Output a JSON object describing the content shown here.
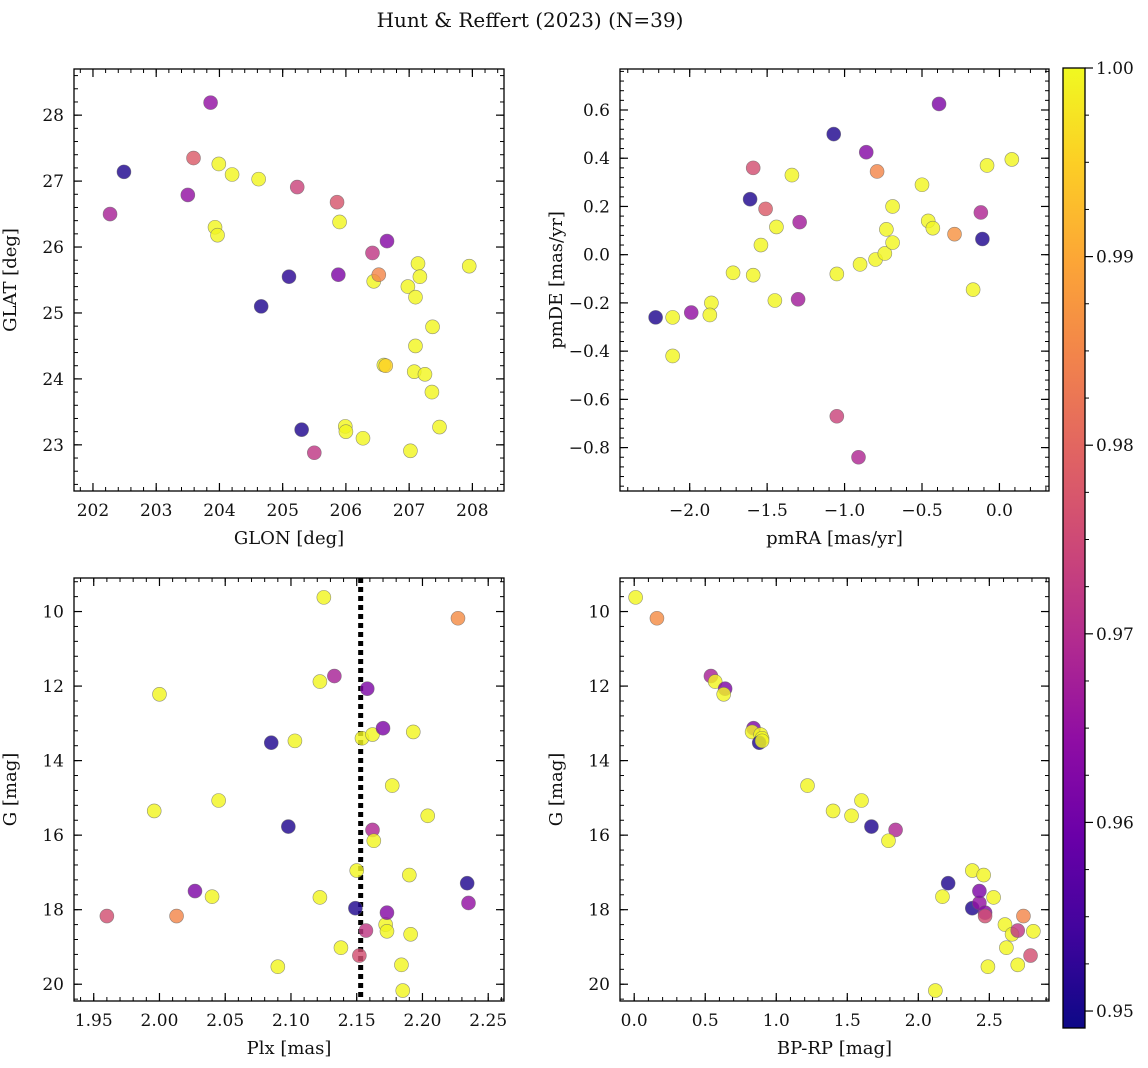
{
  "title": "Hunt & Reffert (2023) (N=39)",
  "chart_data": [
    {
      "type": "scatter",
      "id": "glon_glat",
      "xlabel": "GLON [deg]",
      "ylabel": "GLAT [deg]",
      "xlim": [
        201.7,
        208.5
      ],
      "ylim": [
        22.3,
        28.7
      ],
      "xticks": [
        202,
        203,
        204,
        205,
        206,
        207,
        208
      ],
      "yticks": [
        23,
        24,
        25,
        26,
        27,
        28
      ],
      "invert_y": false,
      "points": [
        {
          "x": 202.27,
          "y": 26.5,
          "c": 0.968
        },
        {
          "x": 202.49,
          "y": 27.14,
          "c": 0.951
        },
        {
          "x": 203.5,
          "y": 26.79,
          "c": 0.965
        },
        {
          "x": 203.59,
          "y": 27.35,
          "c": 0.978
        },
        {
          "x": 203.86,
          "y": 28.19,
          "c": 0.965
        },
        {
          "x": 203.93,
          "y": 26.3,
          "c": 0.9995
        },
        {
          "x": 203.97,
          "y": 26.18,
          "c": 0.9995
        },
        {
          "x": 203.99,
          "y": 27.26,
          "c": 0.9995
        },
        {
          "x": 204.2,
          "y": 27.1,
          "c": 0.9995
        },
        {
          "x": 204.62,
          "y": 27.03,
          "c": 0.9995
        },
        {
          "x": 204.66,
          "y": 25.1,
          "c": 0.951
        },
        {
          "x": 205.1,
          "y": 25.55,
          "c": 0.952
        },
        {
          "x": 205.23,
          "y": 26.91,
          "c": 0.974
        },
        {
          "x": 205.3,
          "y": 23.23,
          "c": 0.951
        },
        {
          "x": 205.5,
          "y": 22.88,
          "c": 0.972
        },
        {
          "x": 205.86,
          "y": 26.68,
          "c": 0.977
        },
        {
          "x": 205.88,
          "y": 25.58,
          "c": 0.962
        },
        {
          "x": 205.9,
          "y": 26.38,
          "c": 0.9995
        },
        {
          "x": 205.99,
          "y": 23.28,
          "c": 0.9995
        },
        {
          "x": 206.0,
          "y": 23.2,
          "c": 0.9995
        },
        {
          "x": 206.27,
          "y": 23.1,
          "c": 0.9995
        },
        {
          "x": 206.42,
          "y": 25.91,
          "c": 0.972
        },
        {
          "x": 206.44,
          "y": 25.48,
          "c": 0.9995
        },
        {
          "x": 206.52,
          "y": 25.58,
          "c": 0.985
        },
        {
          "x": 206.6,
          "y": 24.21,
          "c": 0.9995
        },
        {
          "x": 206.63,
          "y": 24.2,
          "c": 0.995
        },
        {
          "x": 206.65,
          "y": 26.09,
          "c": 0.963
        },
        {
          "x": 206.98,
          "y": 25.4,
          "c": 0.9995
        },
        {
          "x": 207.02,
          "y": 22.91,
          "c": 0.9995
        },
        {
          "x": 207.08,
          "y": 24.11,
          "c": 0.9995
        },
        {
          "x": 207.1,
          "y": 24.5,
          "c": 0.9995
        },
        {
          "x": 207.1,
          "y": 25.24,
          "c": 0.9995
        },
        {
          "x": 207.14,
          "y": 25.75,
          "c": 0.9995
        },
        {
          "x": 207.17,
          "y": 25.55,
          "c": 0.9995
        },
        {
          "x": 207.25,
          "y": 24.07,
          "c": 0.9995
        },
        {
          "x": 207.36,
          "y": 23.8,
          "c": 0.9995
        },
        {
          "x": 207.37,
          "y": 24.79,
          "c": 0.9995
        },
        {
          "x": 207.48,
          "y": 23.27,
          "c": 0.9995
        },
        {
          "x": 207.95,
          "y": 25.71,
          "c": 0.9995
        }
      ]
    },
    {
      "type": "scatter",
      "id": "pmra_pmde",
      "xlabel": "pmRA [mas/yr]",
      "ylabel": "pmDE [mas/yr]",
      "xlim": [
        -2.45,
        0.32
      ],
      "ylim": [
        -0.98,
        0.77
      ],
      "xticks": [
        -2.0,
        -1.5,
        -1.0,
        -0.5,
        0.0
      ],
      "xtick_labels": [
        "−2.0",
        "−1.5",
        "−1.0",
        "−0.5",
        "0.0"
      ],
      "yticks": [
        -0.8,
        -0.6,
        -0.4,
        -0.2,
        0.0,
        0.2,
        0.4,
        0.6
      ],
      "ytick_labels": [
        "−0.8",
        "−0.6",
        "−0.4",
        "−0.2",
        "0.0",
        "0.2",
        "0.4",
        "0.6"
      ],
      "invert_y": false,
      "points": [
        {
          "x": -2.22,
          "y": -0.26,
          "c": 0.951
        },
        {
          "x": -2.11,
          "y": -0.26,
          "c": 0.9995
        },
        {
          "x": -2.11,
          "y": -0.42,
          "c": 0.9995
        },
        {
          "x": -1.99,
          "y": -0.24,
          "c": 0.965
        },
        {
          "x": -1.86,
          "y": -0.2,
          "c": 0.9995
        },
        {
          "x": -1.87,
          "y": -0.25,
          "c": 0.9995
        },
        {
          "x": -1.72,
          "y": -0.075,
          "c": 0.9995
        },
        {
          "x": -1.61,
          "y": 0.23,
          "c": 0.951
        },
        {
          "x": -1.59,
          "y": 0.36,
          "c": 0.976
        },
        {
          "x": -1.59,
          "y": -0.085,
          "c": 0.9995
        },
        {
          "x": -1.54,
          "y": 0.04,
          "c": 0.9995
        },
        {
          "x": -1.51,
          "y": 0.19,
          "c": 0.978
        },
        {
          "x": -1.45,
          "y": -0.19,
          "c": 0.9995
        },
        {
          "x": -1.44,
          "y": 0.115,
          "c": 0.9995
        },
        {
          "x": -1.34,
          "y": 0.33,
          "c": 0.9995
        },
        {
          "x": -1.3,
          "y": -0.185,
          "c": 0.967
        },
        {
          "x": -1.29,
          "y": 0.135,
          "c": 0.967
        },
        {
          "x": -1.07,
          "y": 0.5,
          "c": 0.951
        },
        {
          "x": -1.05,
          "y": -0.67,
          "c": 0.974
        },
        {
          "x": -1.05,
          "y": -0.08,
          "c": 0.9995
        },
        {
          "x": -0.91,
          "y": -0.84,
          "c": 0.969
        },
        {
          "x": -0.9,
          "y": -0.04,
          "c": 0.9995
        },
        {
          "x": -0.86,
          "y": 0.425,
          "c": 0.963
        },
        {
          "x": -0.8,
          "y": -0.02,
          "c": 0.9995
        },
        {
          "x": -0.79,
          "y": 0.345,
          "c": 0.985
        },
        {
          "x": -0.74,
          "y": 0.005,
          "c": 0.9995
        },
        {
          "x": -0.73,
          "y": 0.105,
          "c": 0.9995
        },
        {
          "x": -0.69,
          "y": 0.05,
          "c": 0.9995
        },
        {
          "x": -0.69,
          "y": 0.2,
          "c": 0.9995
        },
        {
          "x": -0.5,
          "y": 0.29,
          "c": 0.9995
        },
        {
          "x": -0.46,
          "y": 0.14,
          "c": 0.9995
        },
        {
          "x": -0.43,
          "y": 0.11,
          "c": 0.9995
        },
        {
          "x": -0.39,
          "y": 0.625,
          "c": 0.962
        },
        {
          "x": -0.29,
          "y": 0.085,
          "c": 0.987
        },
        {
          "x": -0.17,
          "y": -0.145,
          "c": 0.9995
        },
        {
          "x": -0.12,
          "y": 0.175,
          "c": 0.969
        },
        {
          "x": -0.11,
          "y": 0.065,
          "c": 0.951
        },
        {
          "x": -0.08,
          "y": 0.37,
          "c": 0.9995
        },
        {
          "x": 0.08,
          "y": 0.395,
          "c": 0.9995
        }
      ]
    },
    {
      "type": "scatter",
      "id": "plx_g",
      "xlabel": "Plx [mas]",
      "ylabel": "G [mag]",
      "xlim": [
        1.935,
        2.262
      ],
      "ylim": [
        20.45,
        9.1
      ],
      "xticks": [
        1.95,
        2.0,
        2.05,
        2.1,
        2.15,
        2.2,
        2.25
      ],
      "xtick_labels": [
        "1.95",
        "2.00",
        "2.05",
        "2.10",
        "2.15",
        "2.20",
        "2.25"
      ],
      "yticks": [
        10,
        12,
        14,
        16,
        18,
        20
      ],
      "invert_y": true,
      "vline": 2.153,
      "points": [
        {
          "x": 1.96,
          "y": 18.17,
          "c": 0.976
        },
        {
          "x": 1.996,
          "y": 15.35,
          "c": 0.9995
        },
        {
          "x": 2.0,
          "y": 12.22,
          "c": 0.9995
        },
        {
          "x": 2.013,
          "y": 18.17,
          "c": 0.985
        },
        {
          "x": 2.027,
          "y": 17.5,
          "c": 0.962
        },
        {
          "x": 2.04,
          "y": 17.65,
          "c": 0.9995
        },
        {
          "x": 2.045,
          "y": 15.07,
          "c": 0.9995
        },
        {
          "x": 2.085,
          "y": 13.52,
          "c": 0.951
        },
        {
          "x": 2.09,
          "y": 19.53,
          "c": 0.9995
        },
        {
          "x": 2.098,
          "y": 15.77,
          "c": 0.951
        },
        {
          "x": 2.103,
          "y": 13.47,
          "c": 0.9995
        },
        {
          "x": 2.122,
          "y": 11.88,
          "c": 0.9995
        },
        {
          "x": 2.122,
          "y": 17.67,
          "c": 0.9995
        },
        {
          "x": 2.125,
          "y": 9.62,
          "c": 0.9995
        },
        {
          "x": 2.133,
          "y": 11.73,
          "c": 0.968
        },
        {
          "x": 2.138,
          "y": 19.02,
          "c": 0.9995
        },
        {
          "x": 2.149,
          "y": 17.96,
          "c": 0.951
        },
        {
          "x": 2.15,
          "y": 16.95,
          "c": 0.9995
        },
        {
          "x": 2.152,
          "y": 19.23,
          "c": 0.976
        },
        {
          "x": 2.154,
          "y": 13.4,
          "c": 0.9995
        },
        {
          "x": 2.157,
          "y": 18.56,
          "c": 0.972
        },
        {
          "x": 2.158,
          "y": 12.07,
          "c": 0.962
        },
        {
          "x": 2.162,
          "y": 13.3,
          "c": 0.9995
        },
        {
          "x": 2.162,
          "y": 15.86,
          "c": 0.969
        },
        {
          "x": 2.163,
          "y": 16.15,
          "c": 0.9995
        },
        {
          "x": 2.17,
          "y": 13.13,
          "c": 0.962
        },
        {
          "x": 2.172,
          "y": 18.4,
          "c": 0.9995
        },
        {
          "x": 2.173,
          "y": 18.58,
          "c": 0.9995
        },
        {
          "x": 2.173,
          "y": 18.08,
          "c": 0.963
        },
        {
          "x": 2.177,
          "y": 14.67,
          "c": 0.9995
        },
        {
          "x": 2.184,
          "y": 19.48,
          "c": 0.9995
        },
        {
          "x": 2.185,
          "y": 20.17,
          "c": 0.9995
        },
        {
          "x": 2.19,
          "y": 17.07,
          "c": 0.9995
        },
        {
          "x": 2.191,
          "y": 18.66,
          "c": 0.9995
        },
        {
          "x": 2.193,
          "y": 13.23,
          "c": 0.9995
        },
        {
          "x": 2.204,
          "y": 15.48,
          "c": 0.9995
        },
        {
          "x": 2.227,
          "y": 10.18,
          "c": 0.986
        },
        {
          "x": 2.234,
          "y": 17.29,
          "c": 0.951
        },
        {
          "x": 2.235,
          "y": 17.82,
          "c": 0.965
        }
      ]
    },
    {
      "type": "scatter",
      "id": "bprp_g",
      "xlabel": "BP-RP [mag]",
      "ylabel": "G [mag]",
      "xlim": [
        -0.1,
        2.92
      ],
      "ylim": [
        20.45,
        9.1
      ],
      "xticks": [
        0.0,
        0.5,
        1.0,
        1.5,
        2.0,
        2.5
      ],
      "xtick_labels": [
        "0.0",
        "0.5",
        "1.0",
        "1.5",
        "2.0",
        "2.5"
      ],
      "yticks": [
        10,
        12,
        14,
        16,
        18,
        20
      ],
      "invert_y": true,
      "points": [
        {
          "x": 0.01,
          "y": 9.62,
          "c": 0.9995
        },
        {
          "x": 0.16,
          "y": 10.18,
          "c": 0.986
        },
        {
          "x": 0.54,
          "y": 11.73,
          "c": 0.968
        },
        {
          "x": 0.57,
          "y": 11.88,
          "c": 0.9995
        },
        {
          "x": 0.64,
          "y": 12.07,
          "c": 0.962
        },
        {
          "x": 0.63,
          "y": 12.22,
          "c": 0.9995
        },
        {
          "x": 0.84,
          "y": 13.13,
          "c": 0.962
        },
        {
          "x": 0.83,
          "y": 13.23,
          "c": 0.9995
        },
        {
          "x": 0.89,
          "y": 13.3,
          "c": 0.9995
        },
        {
          "x": 0.9,
          "y": 13.4,
          "c": 0.9995
        },
        {
          "x": 0.88,
          "y": 13.52,
          "c": 0.951
        },
        {
          "x": 0.9,
          "y": 13.47,
          "c": 0.9995
        },
        {
          "x": 1.22,
          "y": 14.67,
          "c": 0.9995
        },
        {
          "x": 1.4,
          "y": 15.35,
          "c": 0.9995
        },
        {
          "x": 1.53,
          "y": 15.48,
          "c": 0.9995
        },
        {
          "x": 1.6,
          "y": 15.07,
          "c": 0.9995
        },
        {
          "x": 1.67,
          "y": 15.77,
          "c": 0.951
        },
        {
          "x": 1.84,
          "y": 15.86,
          "c": 0.969
        },
        {
          "x": 1.79,
          "y": 16.15,
          "c": 0.9995
        },
        {
          "x": 2.12,
          "y": 20.17,
          "c": 0.9995
        },
        {
          "x": 2.17,
          "y": 17.65,
          "c": 0.9995
        },
        {
          "x": 2.21,
          "y": 17.29,
          "c": 0.951
        },
        {
          "x": 2.38,
          "y": 16.95,
          "c": 0.9995
        },
        {
          "x": 2.38,
          "y": 17.96,
          "c": 0.951
        },
        {
          "x": 2.43,
          "y": 17.82,
          "c": 0.965
        },
        {
          "x": 2.43,
          "y": 17.5,
          "c": 0.962
        },
        {
          "x": 2.46,
          "y": 17.07,
          "c": 0.9995
        },
        {
          "x": 2.47,
          "y": 18.08,
          "c": 0.963
        },
        {
          "x": 2.47,
          "y": 18.17,
          "c": 0.976
        },
        {
          "x": 2.49,
          "y": 19.53,
          "c": 0.9995
        },
        {
          "x": 2.53,
          "y": 17.67,
          "c": 0.9995
        },
        {
          "x": 2.61,
          "y": 18.4,
          "c": 0.9995
        },
        {
          "x": 2.62,
          "y": 19.02,
          "c": 0.9995
        },
        {
          "x": 2.66,
          "y": 18.66,
          "c": 0.9995
        },
        {
          "x": 2.7,
          "y": 18.56,
          "c": 0.972
        },
        {
          "x": 2.7,
          "y": 19.48,
          "c": 0.9995
        },
        {
          "x": 2.74,
          "y": 18.17,
          "c": 0.985
        },
        {
          "x": 2.79,
          "y": 19.23,
          "c": 0.976
        },
        {
          "x": 2.81,
          "y": 18.58,
          "c": 0.9995
        }
      ]
    }
  ],
  "colorbar": {
    "colormap": "plasma",
    "min": 0.9491,
    "max": 1.0,
    "ticks": [
      0.95,
      0.96,
      0.97,
      0.98,
      0.99,
      1.0
    ],
    "tick_labels": [
      "0.95",
      "0.96",
      "0.97",
      "0.98",
      "0.99",
      "1.00"
    ]
  }
}
